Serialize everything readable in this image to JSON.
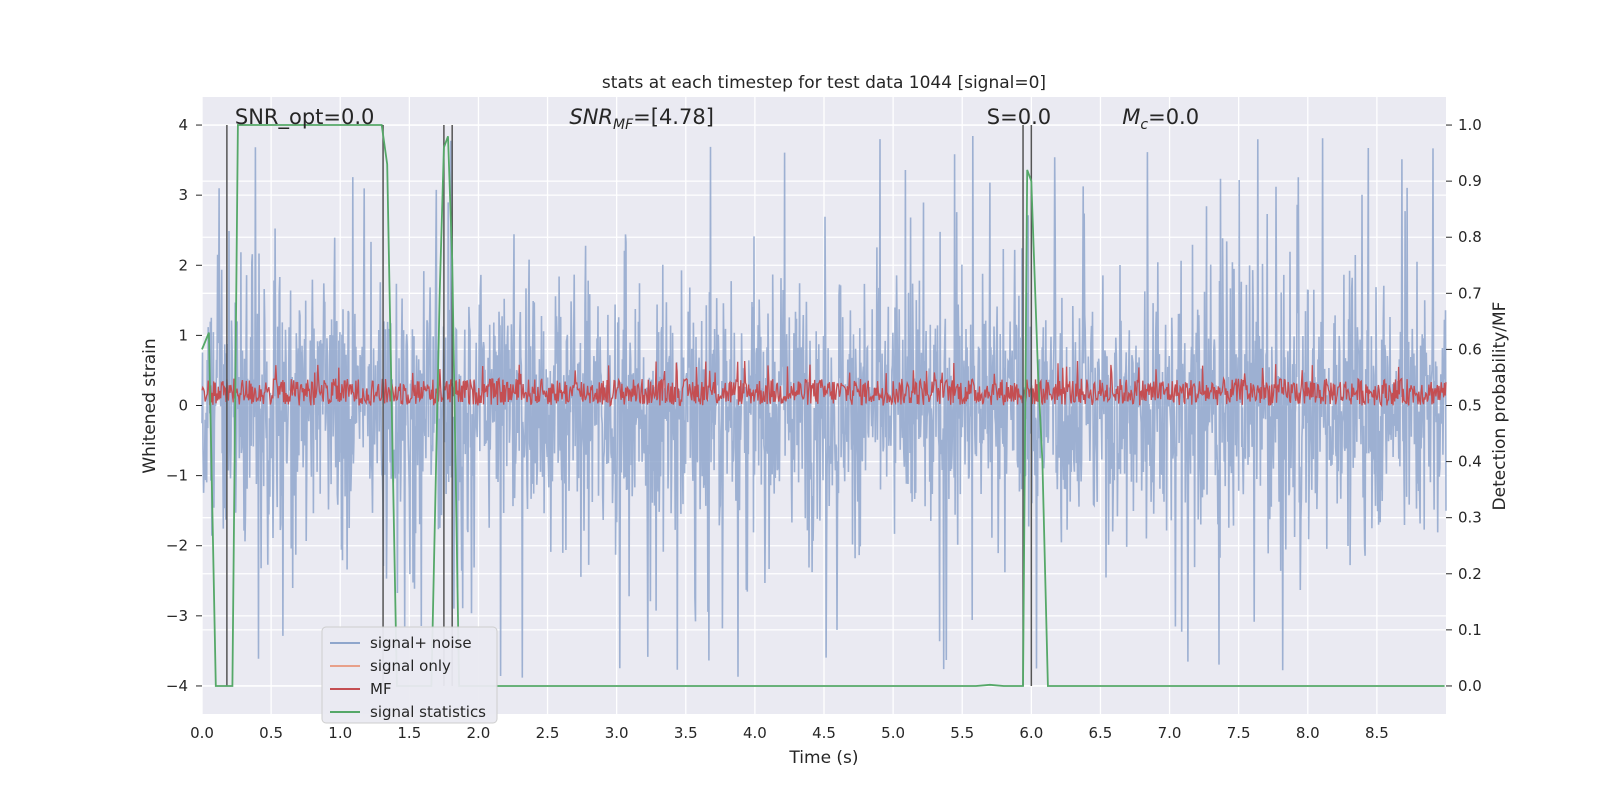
{
  "chart_data": {
    "type": "line",
    "title": "stats at each timestep for test data 1044 [signal=0]",
    "xlabel": "Time (s)",
    "ylabel": "Whitened strain",
    "ylabel_right": "Detection probability/MF",
    "xlim": [
      0.0,
      9.0
    ],
    "ylim": [
      -4.4,
      4.4
    ],
    "ylim_right": [
      -0.05,
      1.05
    ],
    "x_ticks": [
      "0.0",
      "0.5",
      "1.0",
      "1.5",
      "2.0",
      "2.5",
      "3.0",
      "3.5",
      "4.0",
      "4.5",
      "5.0",
      "5.5",
      "6.0",
      "6.5",
      "7.0",
      "7.5",
      "8.0",
      "8.5"
    ],
    "y_ticks": [
      "4",
      "3",
      "2",
      "1",
      "0",
      "−1",
      "−2",
      "−3",
      "−4"
    ],
    "y_ticks_right": [
      "1.0",
      "0.9",
      "0.8",
      "0.7",
      "0.6",
      "0.5",
      "0.4",
      "0.3",
      "0.2",
      "0.1",
      "0.0"
    ],
    "grid": true,
    "legend_position": "lower-left",
    "annotations": [
      {
        "text": "SNR_opt=0.0",
        "x": 0.18,
        "y": 4.1
      },
      {
        "text": "SNR_MF=[4.78]",
        "x": 2.6,
        "y": 4.1
      },
      {
        "text": "S=0.0",
        "x": 5.62,
        "y": 4.1
      },
      {
        "text": "M_c=0.0",
        "x": 6.6,
        "y": 4.1
      }
    ],
    "vlines_x": [
      0.18,
      1.31,
      1.75,
      1.81,
      5.94,
      6.0
    ],
    "series": [
      {
        "name": "signal+ noise",
        "color": "#8fa6cc",
        "axis": "left",
        "description": "whitened noise, roughly uniform amplitude about ±1.5 with spikes to about ±4",
        "amplitude": 1.5
      },
      {
        "name": "signal only",
        "color": "#e8a08a",
        "axis": "left",
        "values": "all zero"
      },
      {
        "name": "MF",
        "color": "#c44e52",
        "axis": "right",
        "baseline": 0.5,
        "range": [
          0.5,
          0.58
        ]
      },
      {
        "name": "signal statistics",
        "color": "#55a868",
        "axis": "right",
        "x": [
          0.0,
          0.05,
          0.1,
          0.12,
          0.17,
          0.22,
          0.26,
          0.3,
          1.3,
          1.34,
          1.41,
          1.45,
          1.66,
          1.72,
          1.75,
          1.78,
          1.81,
          1.86,
          1.9,
          5.6,
          5.7,
          5.8,
          5.94,
          5.97,
          6.0,
          6.05,
          6.08,
          6.12,
          8.99
        ],
        "y": [
          0.6,
          0.63,
          0.0,
          0.0,
          0.0,
          0.0,
          1.0,
          1.0,
          1.0,
          0.93,
          0.0,
          0.0,
          0.0,
          0.7,
          0.96,
          0.98,
          0.76,
          0.0,
          0.0,
          0.0,
          0.002,
          0.0,
          0.0,
          0.92,
          0.9,
          0.55,
          0.4,
          0.0,
          0.0
        ]
      }
    ]
  }
}
